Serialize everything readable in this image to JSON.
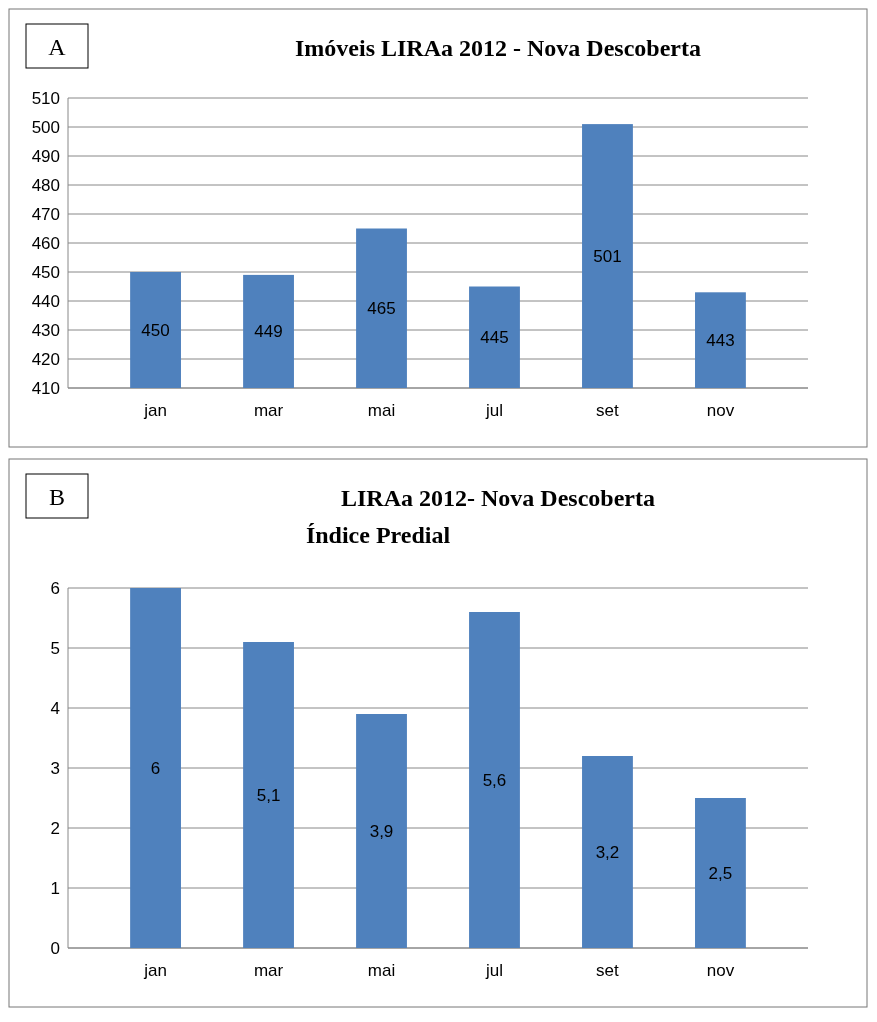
{
  "chart_data": [
    {
      "type": "bar",
      "title": "Imóveis LIRAa 2012 - Nova Descoberta",
      "annotations": [
        "A"
      ],
      "categories": [
        "jan",
        "mar",
        "mai",
        "jul",
        "set",
        "nov"
      ],
      "values": [
        450,
        449,
        465,
        445,
        501,
        443
      ],
      "color": "#4f81bd",
      "ylim": [
        410,
        510
      ],
      "yticks": [
        410,
        420,
        430,
        440,
        450,
        460,
        470,
        480,
        490,
        500,
        510
      ],
      "grid": "y",
      "data_labels": true
    },
    {
      "type": "bar",
      "title": "LIRAa 2012- Nova Descoberta",
      "subtitle": "Índice Predial",
      "annotations": [
        "B"
      ],
      "categories": [
        "jan",
        "mar",
        "mai",
        "jul",
        "set",
        "nov"
      ],
      "values": [
        6,
        5.1,
        3.9,
        5.6,
        3.2,
        2.5
      ],
      "value_labels": [
        "6",
        "5,1",
        "3,9",
        "5,6",
        "3,2",
        "2,5"
      ],
      "color": "#4f81bd",
      "ylim": [
        0,
        6
      ],
      "yticks": [
        0,
        1,
        2,
        3,
        4,
        5,
        6
      ],
      "grid": "y"
    }
  ]
}
